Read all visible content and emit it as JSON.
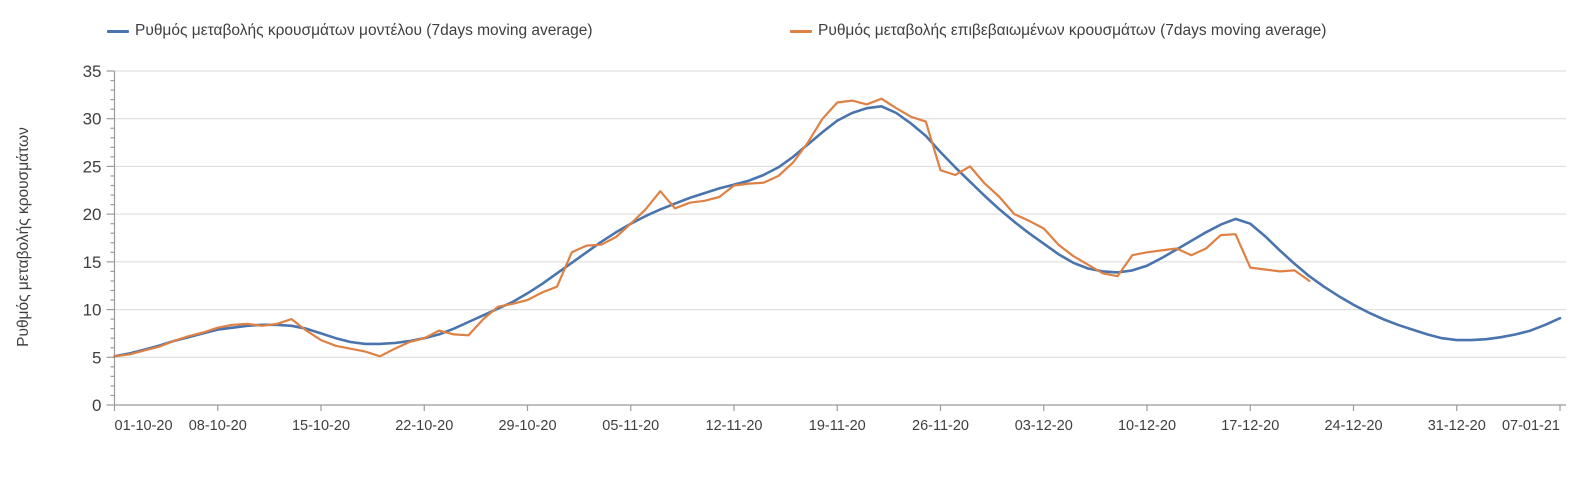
{
  "chart": {
    "legend": [
      {
        "label": "Ρυθμός μεταβολής κρουσμάτων μοντέλου (7days moving average)",
        "color": "#4a74ad"
      },
      {
        "label": "Ρυθμός μεταβολής επιβεβαιωμένων κρουσμάτων (7days moving average)",
        "color": "#de8144"
      }
    ],
    "y_axis_title": "Ρυθμός μεταβολής κρουσμάτων"
  },
  "chart_data": {
    "type": "line",
    "title": "",
    "xlabel": "",
    "ylabel": "Ρυθμός μεταβολής κρουσμάτων",
    "ylim": [
      0,
      35
    ],
    "y_ticks": [
      0,
      5,
      10,
      15,
      20,
      25,
      30,
      35
    ],
    "y_minor_tick_step": 1,
    "grid": "horizontal-major-only",
    "legend_position": "top",
    "x_tick_labels": [
      "01-10-20",
      "08-10-20",
      "15-10-20",
      "22-10-20",
      "29-10-20",
      "05-11-20",
      "12-11-20",
      "19-11-20",
      "26-11-20",
      "03-12-20",
      "10-12-20",
      "17-12-20",
      "24-12-20",
      "31-12-20",
      "07-01-21"
    ],
    "x_tick_days": [
      0,
      7,
      14,
      21,
      28,
      35,
      42,
      49,
      56,
      63,
      70,
      77,
      84,
      91,
      98
    ],
    "x_total_days": 98,
    "x_start_date": "01-10-20",
    "x_end_date": "07-01-21",
    "x_unit": "1 point per day",
    "series": [
      {
        "name": "Ρυθμός μεταβολής κρουσμάτων μοντέλου (7days moving average)",
        "color": "#4a74ad",
        "start_day": 0,
        "values": [
          5.1,
          5.4,
          5.8,
          6.2,
          6.7,
          7.1,
          7.5,
          7.9,
          8.1,
          8.3,
          8.4,
          8.4,
          8.3,
          8.0,
          7.5,
          7.0,
          6.6,
          6.4,
          6.4,
          6.5,
          6.7,
          7.0,
          7.4,
          8.0,
          8.7,
          9.4,
          10.1,
          10.8,
          11.7,
          12.7,
          13.8,
          14.9,
          16.0,
          17.1,
          18.1,
          19.0,
          19.8,
          20.5,
          21.1,
          21.7,
          22.2,
          22.7,
          23.1,
          23.5,
          24.1,
          24.9,
          26.0,
          27.3,
          28.6,
          29.8,
          30.6,
          31.1,
          31.3,
          30.6,
          29.5,
          28.2,
          26.5,
          24.9,
          23.4,
          21.9,
          20.5,
          19.2,
          18.0,
          16.9,
          15.8,
          14.9,
          14.3,
          14.0,
          13.9,
          14.1,
          14.6,
          15.4,
          16.3,
          17.2,
          18.1,
          18.9,
          19.5,
          19.0,
          17.7,
          16.2,
          14.8,
          13.5,
          12.4,
          11.4,
          10.5,
          9.7,
          9.0,
          8.4,
          7.9,
          7.4,
          7.0,
          6.8,
          6.8,
          6.9,
          7.1,
          7.4,
          7.8,
          8.4,
          9.1
        ]
      },
      {
        "name": "Ρυθμός μεταβολής επιβεβαιωμένων κρουσμάτων (7days moving average)",
        "color": "#de8144",
        "start_day": 0,
        "values": [
          5.1,
          5.3,
          5.7,
          6.1,
          6.7,
          7.2,
          7.6,
          8.1,
          8.4,
          8.5,
          8.3,
          8.5,
          9.0,
          7.8,
          6.8,
          6.2,
          5.9,
          5.6,
          5.1,
          5.9,
          6.6,
          7.0,
          7.8,
          7.4,
          7.3,
          9.0,
          10.3,
          10.6,
          11.0,
          11.8,
          12.4,
          16.0,
          16.7,
          16.8,
          17.6,
          19.0,
          20.5,
          22.4,
          20.6,
          21.2,
          21.4,
          21.8,
          23.0,
          23.2,
          23.3,
          24.0,
          25.4,
          27.5,
          30.0,
          31.7,
          31.9,
          31.5,
          32.1,
          31.1,
          30.2,
          29.7,
          24.6,
          24.1,
          25.0,
          23.2,
          21.8,
          20.0,
          19.3,
          18.5,
          16.8,
          15.6,
          14.7,
          13.8,
          13.5,
          15.7,
          16.0,
          16.2,
          16.4,
          15.7,
          16.4,
          17.8,
          17.9,
          14.4,
          14.2,
          14.0,
          14.1,
          13.0
        ]
      }
    ]
  },
  "style": {
    "gridline_color": "#d9d9d9",
    "axis_color": "#9b9b9b",
    "text_color": "#3f3f3f",
    "background": "#ffffff"
  }
}
